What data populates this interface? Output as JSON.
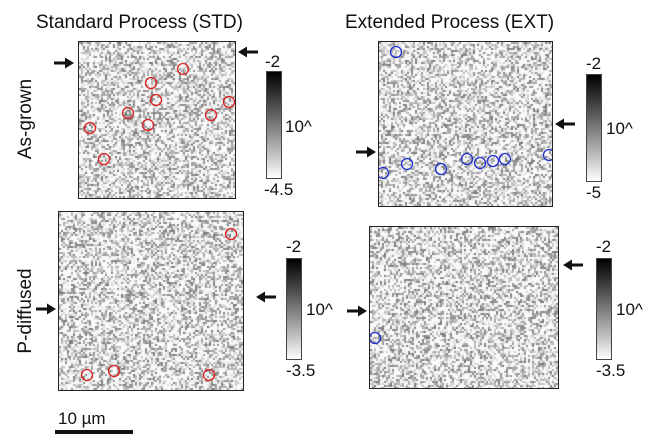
{
  "columns": {
    "std_title": "Standard Process (STD)",
    "ext_title": "Extended Process (EXT)"
  },
  "rows": {
    "as_grown_label": "As-grown",
    "p_diffused_label": "P-diffused"
  },
  "panels": {
    "std_as_grown": {
      "colorbar": {
        "max_label": "-2",
        "mid_label": "10^",
        "min_label": "-4.5"
      },
      "marker_color": "#e02020"
    },
    "ext_as_grown": {
      "colorbar": {
        "max_label": "-2",
        "mid_label": "10^",
        "min_label": "-5"
      },
      "marker_color": "#2030d0"
    },
    "std_p_diffused": {
      "colorbar": {
        "max_label": "-2",
        "mid_label": "10^",
        "min_label": "-3.5"
      },
      "marker_color": "#e02020"
    },
    "ext_p_diffused": {
      "colorbar": {
        "max_label": "-2",
        "mid_label": "10^",
        "min_label": "-3.5"
      },
      "marker_color": "#2030d0"
    }
  },
  "scale_bar": {
    "label": "10 µm"
  }
}
